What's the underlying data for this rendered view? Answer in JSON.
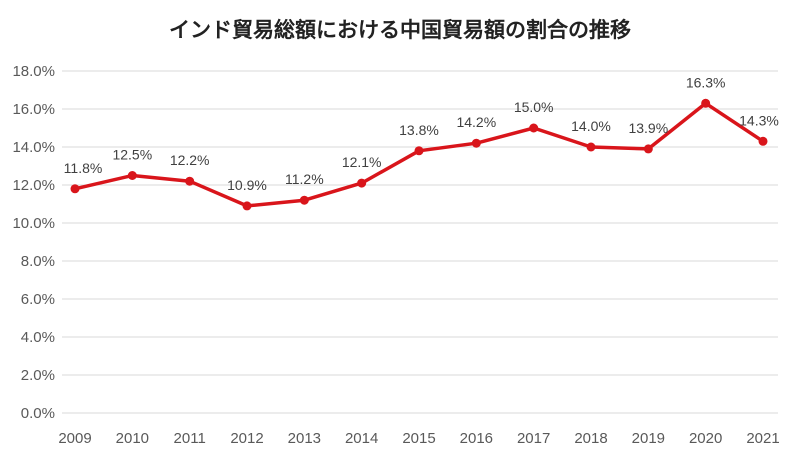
{
  "chart_data": {
    "type": "line",
    "title": "インド貿易総額における中国貿易額の割合の推移",
    "xlabel": "",
    "ylabel": "",
    "categories": [
      "2009",
      "2010",
      "2011",
      "2012",
      "2013",
      "2014",
      "2015",
      "2016",
      "2017",
      "2018",
      "2019",
      "2020",
      "2021"
    ],
    "series": [
      {
        "values": [
          11.8,
          12.5,
          12.2,
          10.9,
          11.2,
          12.1,
          13.8,
          14.2,
          15.0,
          14.0,
          13.9,
          16.3,
          14.3
        ],
        "labels": [
          "11.8%",
          "12.5%",
          "12.2%",
          "10.9%",
          "11.2%",
          "12.1%",
          "13.8%",
          "14.2%",
          "15.0%",
          "14.0%",
          "13.9%",
          "16.3%",
          "14.3%"
        ],
        "color": "#d9151b"
      }
    ],
    "yticks": [
      "0.0%",
      "2.0%",
      "4.0%",
      "6.0%",
      "8.0%",
      "10.0%",
      "12.0%",
      "14.0%",
      "16.0%",
      "18.0%"
    ],
    "ylim": [
      0,
      18
    ],
    "grid": true,
    "gridColor": "#d9d9d9",
    "legend": "none"
  }
}
